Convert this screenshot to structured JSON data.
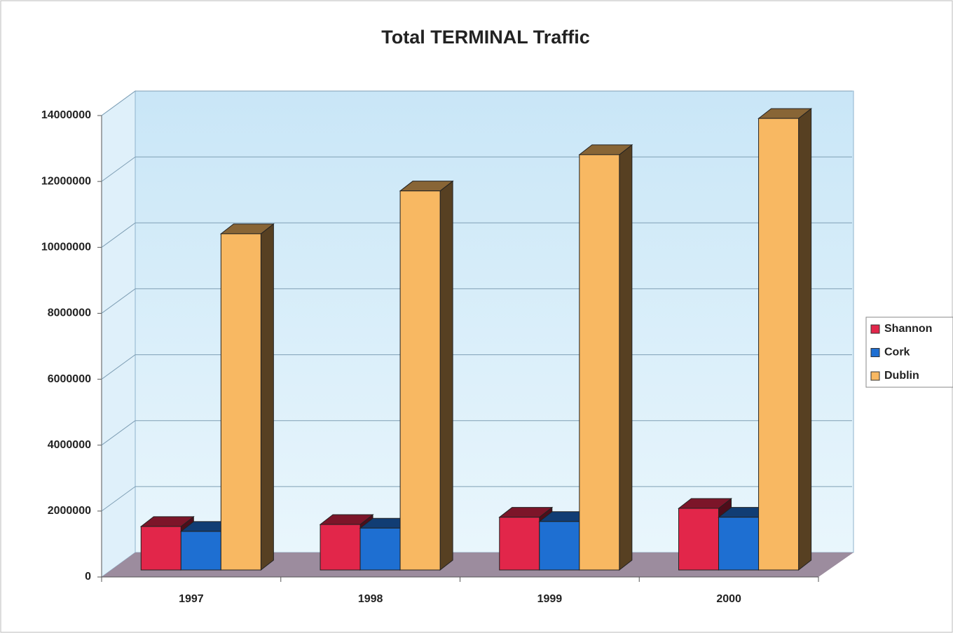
{
  "chart_data": {
    "type": "bar3d",
    "title": "Total TERMINAL Traffic",
    "categories": [
      "1997",
      "1998",
      "1999",
      "2000"
    ],
    "series": [
      {
        "name": "Shannon",
        "color": "#e2264a",
        "values": [
          1320000,
          1380000,
          1600000,
          1870000
        ]
      },
      {
        "name": "Cork",
        "color": "#1e6fd2",
        "values": [
          1170000,
          1270000,
          1470000,
          1600000
        ]
      },
      {
        "name": "Dublin",
        "color": "#f8b862",
        "values": [
          10200000,
          11500000,
          12600000,
          13700000
        ]
      }
    ],
    "ylim": [
      0,
      14000000
    ],
    "yticks": [
      0,
      2000000,
      4000000,
      6000000,
      8000000,
      10000000,
      12000000,
      14000000
    ],
    "grid": true,
    "legend": "right"
  }
}
